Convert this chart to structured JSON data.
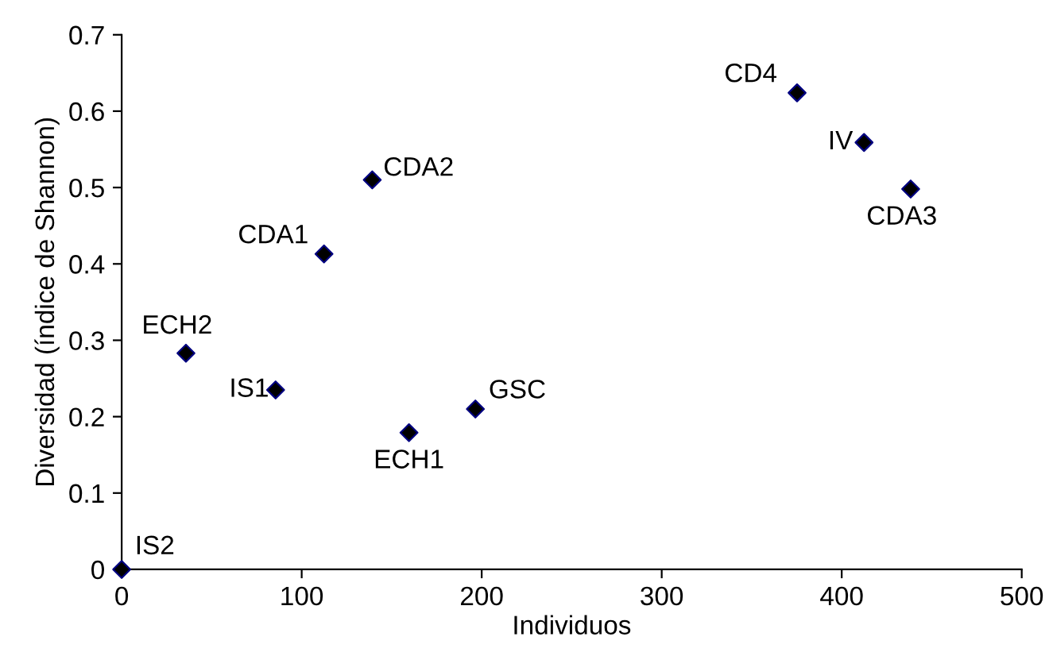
{
  "chart_data": {
    "type": "scatter",
    "xlabel": "Individuos",
    "ylabel": "Diversidad (índice de Shannon)",
    "x": [
      0,
      35.7,
      85.5,
      112.4,
      139.2,
      159.6,
      196.5,
      375.2,
      412.4,
      438.3
    ],
    "values": [
      0,
      0.283,
      0.235,
      0.413,
      0.51,
      0.179,
      0.21,
      0.624,
      0.559,
      0.498
    ],
    "color": "#000000",
    "marker": "diamond",
    "xlim": [
      0,
      500
    ],
    "xticks": [
      0,
      100,
      200,
      300,
      400,
      500
    ],
    "ylim": [
      0,
      0.7
    ],
    "yticks": [
      {
        "value": 0,
        "label": "0"
      },
      0.1,
      0.2,
      0.3,
      0.4,
      0.5,
      0.6,
      0.7
    ],
    "grid": false,
    "legend": false,
    "annotations": [
      {
        "text": "IS2",
        "x": 0,
        "y": 0
      },
      {
        "text": "ECH2",
        "x": 35.7,
        "y": 0.283
      },
      {
        "text": "IS1",
        "x": 85.5,
        "y": 0.235
      },
      {
        "text": "CDA1",
        "x": 112.4,
        "y": 0.413
      },
      {
        "text": "CDA2",
        "x": 139.2,
        "y": 0.51
      },
      {
        "text": "ECH1",
        "x": 159.6,
        "y": 0.179
      },
      {
        "text": "GSC",
        "x": 196.5,
        "y": 0.21
      },
      {
        "text": "CD4",
        "x": 375.2,
        "y": 0.624
      },
      {
        "text": "IV",
        "x": 412.4,
        "y": 0.559
      },
      {
        "text": "CDA3",
        "x": 438.3,
        "y": 0.498
      }
    ]
  }
}
